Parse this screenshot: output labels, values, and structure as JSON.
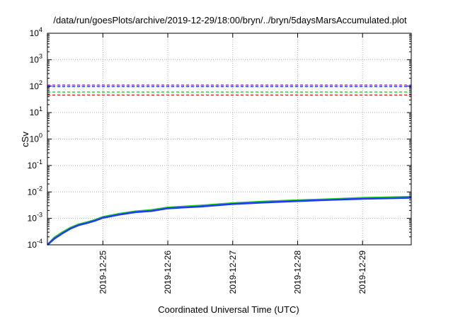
{
  "chart_data": {
    "type": "line",
    "title": "/data/run/goesPlots/archive/2019-12-29/18:00/bryn/../bryn/5daysMarsAccumulated.plot",
    "xlabel": "Coordinated Universal Time (UTC)",
    "ylabel": "cSv",
    "x_scale": "time",
    "y_scale": "log",
    "xlim": [
      "2019-12-24T03:30",
      "2019-12-29T18:00"
    ],
    "ylim": [
      0.0001,
      10000
    ],
    "grid": true,
    "x_ticks": [
      "2019-12-25",
      "2019-12-26",
      "2019-12-27",
      "2019-12-28",
      "2019-12-29"
    ],
    "y_ticks": [
      {
        "base": "10",
        "exp": "-4",
        "value": 0.0001
      },
      {
        "base": "10",
        "exp": "-3",
        "value": 0.001
      },
      {
        "base": "10",
        "exp": "-2",
        "value": 0.01
      },
      {
        "base": "10",
        "exp": "-1",
        "value": 0.1
      },
      {
        "base": "10",
        "exp": "0",
        "value": 1
      },
      {
        "base": "10",
        "exp": "1",
        "value": 10
      },
      {
        "base": "10",
        "exp": "2",
        "value": 100
      },
      {
        "base": "10",
        "exp": "3",
        "value": 1000
      },
      {
        "base": "10",
        "exp": "4",
        "value": 10000
      }
    ],
    "reference_lines": [
      {
        "value": 110,
        "color": "#8a2be2",
        "style": "dashed"
      },
      {
        "value": 96,
        "color": "#1e3cff",
        "style": "dashed"
      },
      {
        "value": 60,
        "color": "#22cc22",
        "style": "dashed"
      },
      {
        "value": 46,
        "color": "#ee2222",
        "style": "dashed"
      }
    ],
    "series": [
      {
        "color": "#22cc22",
        "x": [
          "2019-12-24T03:30",
          "2019-12-24T06:00",
          "2019-12-24T09:00",
          "2019-12-24T12:00",
          "2019-12-24T15:00",
          "2019-12-24T18:00",
          "2019-12-24T21:00",
          "2019-12-25T00:00",
          "2019-12-25T06:00",
          "2019-12-25T12:00",
          "2019-12-25T18:00",
          "2019-12-26T00:00",
          "2019-12-26T12:00",
          "2019-12-27T00:00",
          "2019-12-27T12:00",
          "2019-12-28T00:00",
          "2019-12-28T12:00",
          "2019-12-29T00:00",
          "2019-12-29T18:00"
        ],
        "y": [
          0.0001,
          0.00019,
          0.0003,
          0.00045,
          0.0006,
          0.00072,
          0.00088,
          0.00115,
          0.0015,
          0.00185,
          0.0021,
          0.0026,
          0.0031,
          0.0038,
          0.0044,
          0.0049,
          0.0054,
          0.006,
          0.0066
        ]
      },
      {
        "color": "#1e3cff",
        "x": [
          "2019-12-24T03:30",
          "2019-12-24T06:00",
          "2019-12-24T09:00",
          "2019-12-24T12:00",
          "2019-12-24T15:00",
          "2019-12-24T18:00",
          "2019-12-24T21:00",
          "2019-12-25T00:00",
          "2019-12-25T06:00",
          "2019-12-25T12:00",
          "2019-12-25T18:00",
          "2019-12-26T00:00",
          "2019-12-26T12:00",
          "2019-12-27T00:00",
          "2019-12-27T12:00",
          "2019-12-28T00:00",
          "2019-12-28T12:00",
          "2019-12-29T00:00",
          "2019-12-29T18:00"
        ],
        "y": [
          0.0001,
          0.00017,
          0.00027,
          0.00041,
          0.00055,
          0.00066,
          0.00081,
          0.00105,
          0.00138,
          0.00172,
          0.0019,
          0.0024,
          0.0028,
          0.0035,
          0.004,
          0.0045,
          0.005,
          0.0055,
          0.006
        ]
      }
    ]
  }
}
